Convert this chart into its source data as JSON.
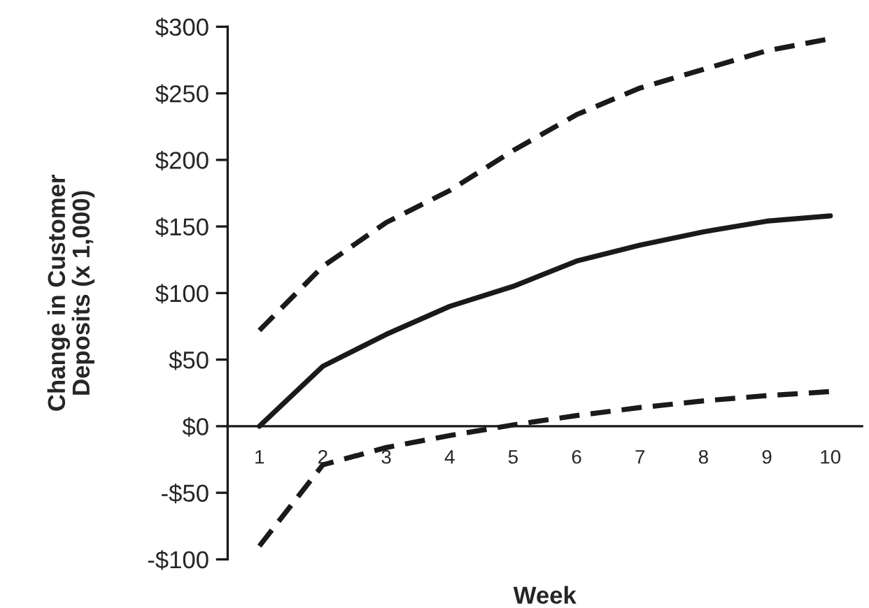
{
  "chart_data": {
    "type": "line",
    "xlabel": "Week",
    "ylabel": "Change in Customer\nDeposits (x 1,000)",
    "categories": [
      "1",
      "2",
      "3",
      "4",
      "5",
      "6",
      "7",
      "8",
      "9",
      "10"
    ],
    "series": [
      {
        "color": "#1a1a1a",
        "line_style": "dashed",
        "values": [
          72,
          120,
          153,
          177,
          207,
          234,
          254,
          268,
          282,
          291
        ]
      },
      {
        "color": "#1a1a1a",
        "line_style": "solid",
        "values": [
          0,
          45,
          69,
          90,
          105,
          124,
          136,
          146,
          154,
          158
        ]
      },
      {
        "color": "#1a1a1a",
        "line_style": "dashed",
        "values": [
          -90,
          -29,
          -16,
          -7,
          1,
          8,
          14,
          19,
          23,
          26
        ]
      }
    ],
    "ylim": [
      -100,
      300
    ],
    "yticks": [
      {
        "value": -100,
        "label": "-$100"
      },
      {
        "value": -50,
        "label": "-$50"
      },
      {
        "value": 0,
        "label": "$0"
      },
      {
        "value": 50,
        "label": "$50"
      },
      {
        "value": 100,
        "label": "$100"
      },
      {
        "value": 150,
        "label": "$150"
      },
      {
        "value": 200,
        "label": "$200"
      },
      {
        "value": 250,
        "label": "$250"
      },
      {
        "value": 300,
        "label": "$300"
      }
    ],
    "grid": false,
    "marker": "none"
  }
}
